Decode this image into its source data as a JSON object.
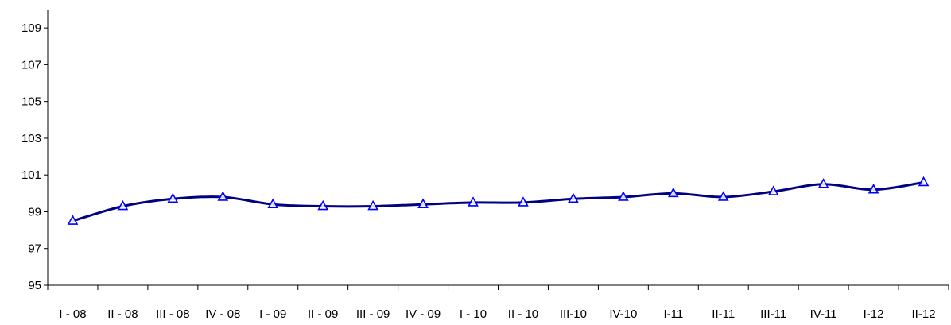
{
  "chart_data": {
    "type": "line",
    "title": "",
    "xlabel": "",
    "ylabel": "",
    "categories": [
      "I - 08",
      "II - 08",
      "III - 08",
      "IV - 08",
      "I - 09",
      "II - 09",
      "III - 09",
      "IV - 09",
      "I - 10",
      "II - 10",
      "III-10",
      "IV-10",
      "I-11",
      "II-11",
      "III-11",
      "IV-11",
      "I-12",
      "II-12"
    ],
    "series": [
      {
        "values": [
          98.5,
          99.3,
          99.7,
          99.8,
          99.4,
          99.3,
          99.3,
          99.4,
          99.5,
          99.5,
          99.7,
          99.8,
          100.0,
          99.8,
          100.1,
          100.5,
          100.2,
          100.6
        ]
      }
    ],
    "ylim": [
      95,
      110
    ],
    "yticks": [
      95,
      97,
      99,
      101,
      103,
      105,
      107,
      109
    ],
    "grid": false,
    "legend": "none",
    "marker": "triangle",
    "colors": {
      "line": "#000080",
      "marker": "#0000ff",
      "axis": "#000000"
    }
  }
}
